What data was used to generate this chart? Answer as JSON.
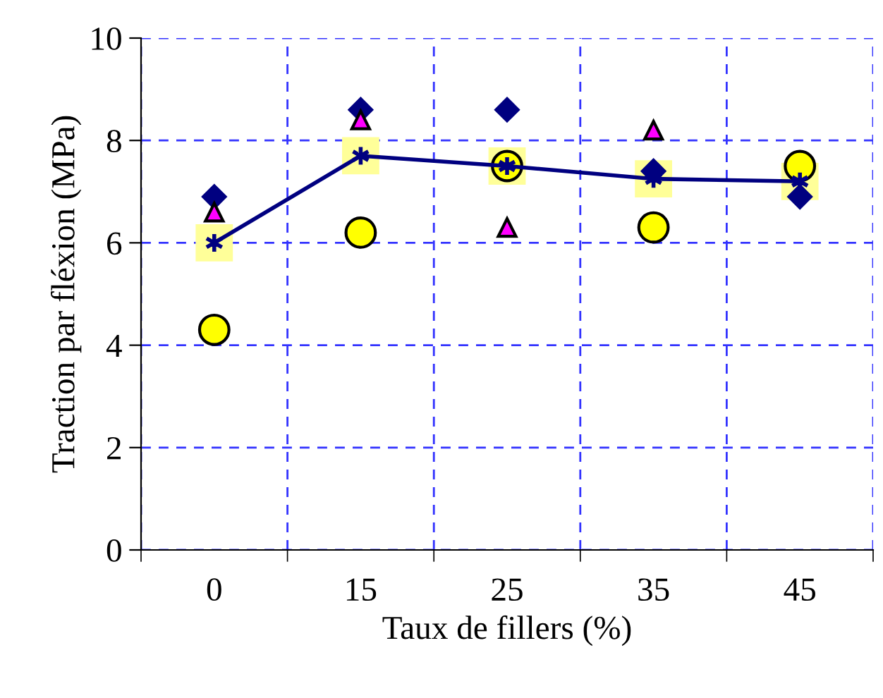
{
  "chart_data": {
    "type": "scatter",
    "xlabel": "Taux de fillers (%)",
    "ylabel": "Traction par fléxion (MPa)",
    "categories": [
      "0",
      "15",
      "25",
      "35",
      "45"
    ],
    "series": [
      {
        "marker": "diamond",
        "color": "#000080",
        "values": [
          6.9,
          8.6,
          8.6,
          7.4,
          6.9
        ]
      },
      {
        "marker": "triangle",
        "color": "#ff00ff",
        "values": [
          6.6,
          8.4,
          6.3,
          8.2,
          null
        ]
      },
      {
        "marker": "circle",
        "color": "#ffff00",
        "values": [
          4.3,
          6.2,
          7.5,
          6.3,
          7.5
        ]
      },
      {
        "type": "line",
        "marker": "cross",
        "color": "#000080",
        "values": [
          6.0,
          7.7,
          7.5,
          7.25,
          7.2
        ]
      }
    ],
    "ylim": [
      0,
      10
    ],
    "yticks": [
      0,
      2,
      4,
      6,
      8,
      10
    ],
    "grid": true,
    "legend": false
  }
}
